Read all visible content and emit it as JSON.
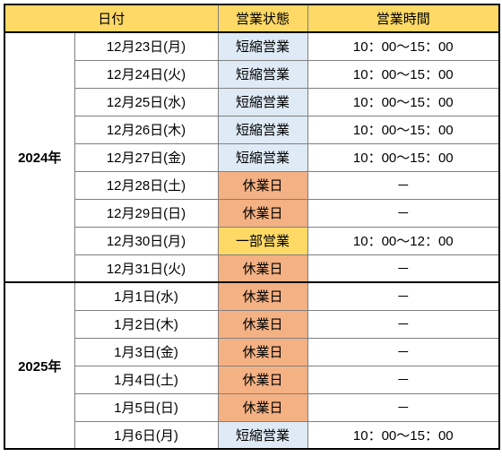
{
  "headers": {
    "date": "日付",
    "status": "営業状態",
    "hours": "営業時間"
  },
  "statusStyles": {
    "短縮営業": "#deeaf6",
    "休業日": "#f4b183",
    "一部営業": "#ffd966"
  },
  "years": [
    {
      "label": "2024年",
      "rows": [
        {
          "date": "12月23日(月)",
          "status": "短縮営業",
          "hours": "10：00～15：00"
        },
        {
          "date": "12月24日(火)",
          "status": "短縮営業",
          "hours": "10：00～15：00"
        },
        {
          "date": "12月25日(水)",
          "status": "短縮営業",
          "hours": "10：00～15：00"
        },
        {
          "date": "12月26日(木)",
          "status": "短縮営業",
          "hours": "10：00～15：00"
        },
        {
          "date": "12月27日(金)",
          "status": "短縮営業",
          "hours": "10：00～15：00"
        },
        {
          "date": "12月28日(土)",
          "status": "休業日",
          "hours": "－"
        },
        {
          "date": "12月29日(日)",
          "status": "休業日",
          "hours": "－"
        },
        {
          "date": "12月30日(月)",
          "status": "一部営業",
          "hours": "10：00～12：00"
        },
        {
          "date": "12月31日(火)",
          "status": "休業日",
          "hours": "－"
        }
      ]
    },
    {
      "label": "2025年",
      "rows": [
        {
          "date": "1月1日(水)",
          "status": "休業日",
          "hours": "－"
        },
        {
          "date": "1月2日(木)",
          "status": "休業日",
          "hours": "－"
        },
        {
          "date": "1月3日(金)",
          "status": "休業日",
          "hours": "－"
        },
        {
          "date": "1月4日(土)",
          "status": "休業日",
          "hours": "－"
        },
        {
          "date": "1月5日(日)",
          "status": "休業日",
          "hours": "－"
        },
        {
          "date": "1月6日(月)",
          "status": "短縮営業",
          "hours": "10：00～15：00"
        }
      ]
    }
  ]
}
